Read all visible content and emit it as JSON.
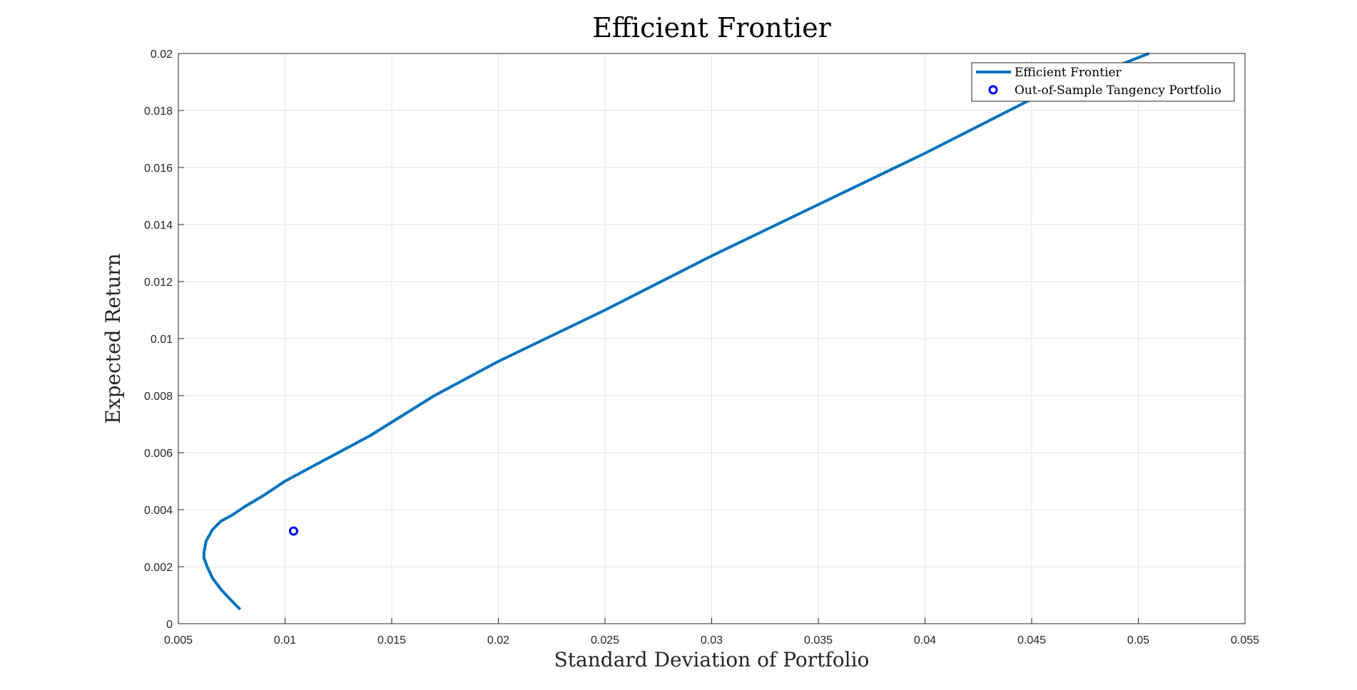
{
  "chart_data": {
    "type": "line",
    "title": "Efficient Frontier",
    "xlabel": "Standard Deviation of Portfolio",
    "ylabel": "Expected Return",
    "xlim": [
      0.005,
      0.055
    ],
    "ylim": [
      0,
      0.02
    ],
    "xticks": [
      "0.005",
      "0.01",
      "0.015",
      "0.02",
      "0.025",
      "0.03",
      "0.035",
      "0.04",
      "0.045",
      "0.05",
      "0.055"
    ],
    "yticks": [
      "0",
      "0.002",
      "0.004",
      "0.006",
      "0.008",
      "0.01",
      "0.012",
      "0.014",
      "0.016",
      "0.018",
      "0.02"
    ],
    "grid": true,
    "legend_position": "top-right",
    "series": [
      {
        "name": "Efficient Frontier",
        "type": "line",
        "color": "#0072BD",
        "x": [
          0.0079,
          0.0075,
          0.007,
          0.0066,
          0.00635,
          0.0062,
          0.0062,
          0.0063,
          0.0066,
          0.007,
          0.0075,
          0.0081,
          0.009,
          0.01,
          0.0115,
          0.014,
          0.017,
          0.02,
          0.025,
          0.03,
          0.035,
          0.04,
          0.045,
          0.0505
        ],
        "y": [
          0.0005,
          0.0008,
          0.0012,
          0.0016,
          0.002,
          0.0023,
          0.0025,
          0.0029,
          0.0033,
          0.0036,
          0.0038,
          0.0041,
          0.0045,
          0.005,
          0.0056,
          0.0066,
          0.008,
          0.0092,
          0.011,
          0.0129,
          0.0147,
          0.0165,
          0.0184,
          0.02
        ]
      },
      {
        "name": "Out-of-Sample Tangency Portfolio",
        "type": "scatter",
        "color": "#0000FF",
        "x": [
          0.0104
        ],
        "y": [
          0.00325
        ]
      }
    ]
  }
}
